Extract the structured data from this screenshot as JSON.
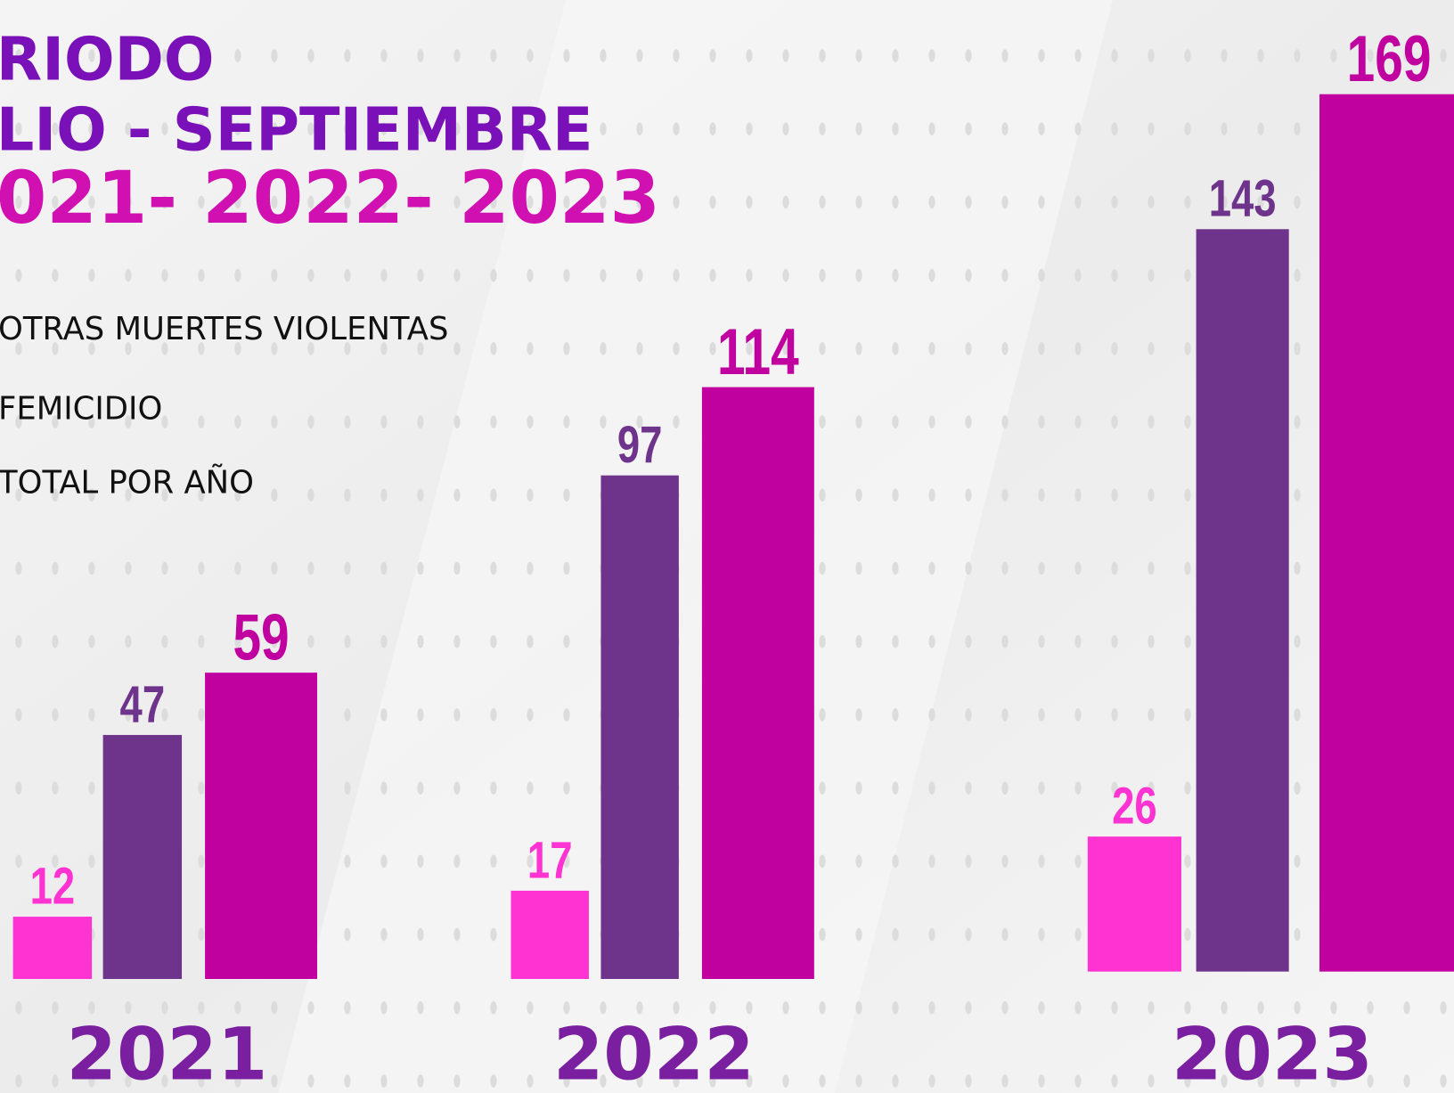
{
  "chart_data": {
    "type": "bar",
    "title_lines": [
      "RIODO",
      "LIO - SEPTIEMBRE",
      "021- 2022- 2023"
    ],
    "categories": [
      "2021",
      "2022",
      "2023"
    ],
    "series": [
      {
        "name": "OTRAS MUERTES VIOLENTAS",
        "color": "#6e348c",
        "values": [
          47,
          97,
          143
        ]
      },
      {
        "name": "FEMICIDIO",
        "color": "#ff33d1",
        "values": [
          12,
          17,
          26
        ]
      },
      {
        "name": "TOTAL POR AÑO",
        "color": "#c0009f",
        "values": [
          59,
          114,
          169
        ]
      }
    ]
  }
}
